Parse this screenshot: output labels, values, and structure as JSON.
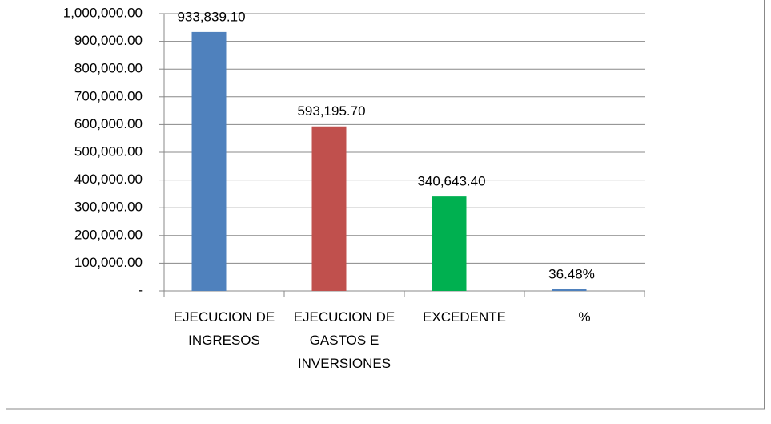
{
  "chart_data": {
    "type": "bar",
    "categories": [
      "EJECUCION DE INGRESOS",
      "EJECUCION DE GASTOS E INVERSIONES",
      "EXCEDENTE",
      "%"
    ],
    "values": [
      933839.1,
      593195.7,
      340643.4,
      36.48
    ],
    "value_labels": [
      "933,839.10",
      "593,195.70",
      "340,643.40",
      "36.48%"
    ],
    "colors": [
      "#4f81bd",
      "#c0504d",
      "#00b050",
      "#4f81bd"
    ],
    "ylim": [
      0,
      1000000
    ],
    "yticks": [
      {
        "value": 0,
        "label": "-"
      },
      {
        "value": 100000,
        "label": "100,000.00"
      },
      {
        "value": 200000,
        "label": "200,000.00"
      },
      {
        "value": 300000,
        "label": "300,000.00"
      },
      {
        "value": 400000,
        "label": "400,000.00"
      },
      {
        "value": 500000,
        "label": "500,000.00"
      },
      {
        "value": 600000,
        "label": "600,000.00"
      },
      {
        "value": 700000,
        "label": "700,000.00"
      },
      {
        "value": 800000,
        "label": "800,000.00"
      },
      {
        "value": 900000,
        "label": "900,000.00"
      },
      {
        "value": 1000000,
        "label": "1,000,000.00"
      }
    ],
    "grid": true
  }
}
